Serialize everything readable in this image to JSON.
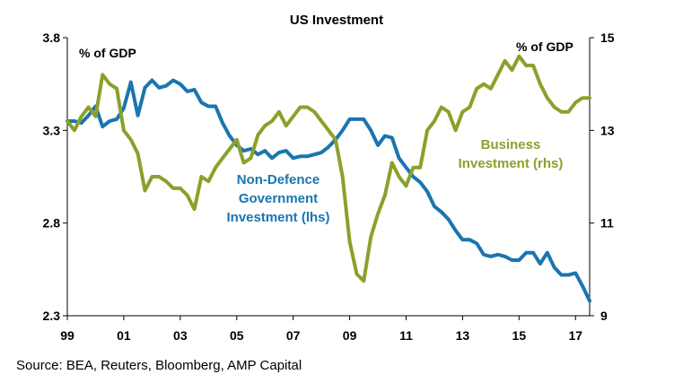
{
  "chart_data": {
    "type": "line",
    "title": "US Investment",
    "y_left_unit": "% of GDP",
    "y_right_unit": "% of GDP",
    "y_left_range": [
      2.3,
      3.8
    ],
    "y_right_range": [
      9,
      15
    ],
    "y_left_ticks": [
      "3.8",
      "3.3",
      "2.8",
      "2.3"
    ],
    "y_right_ticks": [
      "15",
      "13",
      "11",
      "9"
    ],
    "x_range": [
      1999,
      2017.5
    ],
    "x_ticks": [
      {
        "value": 1999,
        "label": "99"
      },
      {
        "value": 2001,
        "label": "01"
      },
      {
        "value": 2003,
        "label": "03"
      },
      {
        "value": 2005,
        "label": "05"
      },
      {
        "value": 2007,
        "label": "07"
      },
      {
        "value": 2009,
        "label": "09"
      },
      {
        "value": 2011,
        "label": "11"
      },
      {
        "value": 2013,
        "label": "13"
      },
      {
        "value": 2015,
        "label": "15"
      },
      {
        "value": 2017,
        "label": "17"
      }
    ],
    "grid": false,
    "series": [
      {
        "name": "Non-Defence Government Investment (lhs)",
        "label_lines": [
          "Non-Defence",
          "Government",
          "Investment (lhs)"
        ],
        "axis": "left",
        "color": "#1a75b0",
        "points": [
          [
            1999.0,
            3.35
          ],
          [
            1999.25,
            3.35
          ],
          [
            1999.5,
            3.34
          ],
          [
            1999.75,
            3.38
          ],
          [
            2000.0,
            3.43
          ],
          [
            2000.25,
            3.32
          ],
          [
            2000.5,
            3.35
          ],
          [
            2000.75,
            3.36
          ],
          [
            2001.0,
            3.42
          ],
          [
            2001.25,
            3.56
          ],
          [
            2001.5,
            3.38
          ],
          [
            2001.75,
            3.53
          ],
          [
            2002.0,
            3.57
          ],
          [
            2002.25,
            3.53
          ],
          [
            2002.5,
            3.54
          ],
          [
            2002.75,
            3.57
          ],
          [
            2003.0,
            3.55
          ],
          [
            2003.25,
            3.51
          ],
          [
            2003.5,
            3.52
          ],
          [
            2003.75,
            3.45
          ],
          [
            2004.0,
            3.43
          ],
          [
            2004.25,
            3.43
          ],
          [
            2004.5,
            3.34
          ],
          [
            2004.75,
            3.27
          ],
          [
            2005.0,
            3.22
          ],
          [
            2005.25,
            3.19
          ],
          [
            2005.5,
            3.2
          ],
          [
            2005.75,
            3.17
          ],
          [
            2006.0,
            3.19
          ],
          [
            2006.25,
            3.15
          ],
          [
            2006.5,
            3.18
          ],
          [
            2006.75,
            3.19
          ],
          [
            2007.0,
            3.15
          ],
          [
            2007.25,
            3.16
          ],
          [
            2007.5,
            3.16
          ],
          [
            2007.75,
            3.17
          ],
          [
            2008.0,
            3.18
          ],
          [
            2008.25,
            3.21
          ],
          [
            2008.5,
            3.25
          ],
          [
            2008.75,
            3.3
          ],
          [
            2009.0,
            3.36
          ],
          [
            2009.25,
            3.36
          ],
          [
            2009.5,
            3.36
          ],
          [
            2009.75,
            3.3
          ],
          [
            2010.0,
            3.22
          ],
          [
            2010.25,
            3.27
          ],
          [
            2010.5,
            3.26
          ],
          [
            2010.75,
            3.15
          ],
          [
            2011.0,
            3.1
          ],
          [
            2011.25,
            3.05
          ],
          [
            2011.5,
            3.02
          ],
          [
            2011.75,
            2.97
          ],
          [
            2012.0,
            2.89
          ],
          [
            2012.25,
            2.86
          ],
          [
            2012.5,
            2.82
          ],
          [
            2012.75,
            2.76
          ],
          [
            2013.0,
            2.71
          ],
          [
            2013.25,
            2.71
          ],
          [
            2013.5,
            2.69
          ],
          [
            2013.75,
            2.63
          ],
          [
            2014.0,
            2.62
          ],
          [
            2014.25,
            2.63
          ],
          [
            2014.5,
            2.62
          ],
          [
            2014.75,
            2.6
          ],
          [
            2015.0,
            2.6
          ],
          [
            2015.25,
            2.64
          ],
          [
            2015.5,
            2.64
          ],
          [
            2015.75,
            2.58
          ],
          [
            2016.0,
            2.64
          ],
          [
            2016.25,
            2.56
          ],
          [
            2016.5,
            2.52
          ],
          [
            2016.75,
            2.52
          ],
          [
            2017.0,
            2.53
          ],
          [
            2017.25,
            2.46
          ],
          [
            2017.5,
            2.38
          ]
        ]
      },
      {
        "name": "Business Investment (rhs)",
        "label_lines": [
          "Business",
          "Investment (rhs)"
        ],
        "axis": "right",
        "color": "#8aa12b",
        "points": [
          [
            1999.0,
            13.2
          ],
          [
            1999.25,
            13.0
          ],
          [
            1999.5,
            13.3
          ],
          [
            1999.75,
            13.5
          ],
          [
            2000.0,
            13.3
          ],
          [
            2000.25,
            14.2
          ],
          [
            2000.5,
            14.0
          ],
          [
            2000.75,
            13.9
          ],
          [
            2001.0,
            13.0
          ],
          [
            2001.25,
            12.8
          ],
          [
            2001.5,
            12.5
          ],
          [
            2001.75,
            11.7
          ],
          [
            2002.0,
            12.0
          ],
          [
            2002.25,
            12.0
          ],
          [
            2002.5,
            11.9
          ],
          [
            2002.75,
            11.75
          ],
          [
            2003.0,
            11.75
          ],
          [
            2003.25,
            11.6
          ],
          [
            2003.5,
            11.3
          ],
          [
            2003.75,
            12.0
          ],
          [
            2004.0,
            11.9
          ],
          [
            2004.25,
            12.2
          ],
          [
            2004.5,
            12.4
          ],
          [
            2004.75,
            12.6
          ],
          [
            2005.0,
            12.8
          ],
          [
            2005.25,
            12.3
          ],
          [
            2005.5,
            12.4
          ],
          [
            2005.75,
            12.9
          ],
          [
            2006.0,
            13.1
          ],
          [
            2006.25,
            13.2
          ],
          [
            2006.5,
            13.4
          ],
          [
            2006.75,
            13.1
          ],
          [
            2007.0,
            13.3
          ],
          [
            2007.25,
            13.5
          ],
          [
            2007.5,
            13.5
          ],
          [
            2007.75,
            13.4
          ],
          [
            2008.0,
            13.2
          ],
          [
            2008.25,
            13.0
          ],
          [
            2008.5,
            12.8
          ],
          [
            2008.75,
            12.0
          ],
          [
            2009.0,
            10.6
          ],
          [
            2009.25,
            9.9
          ],
          [
            2009.5,
            9.75
          ],
          [
            2009.75,
            10.7
          ],
          [
            2010.0,
            11.2
          ],
          [
            2010.25,
            11.6
          ],
          [
            2010.5,
            12.3
          ],
          [
            2010.75,
            12.0
          ],
          [
            2011.0,
            11.8
          ],
          [
            2011.25,
            12.2
          ],
          [
            2011.5,
            12.2
          ],
          [
            2011.75,
            13.0
          ],
          [
            2012.0,
            13.2
          ],
          [
            2012.25,
            13.5
          ],
          [
            2012.5,
            13.4
          ],
          [
            2012.75,
            13.0
          ],
          [
            2013.0,
            13.4
          ],
          [
            2013.25,
            13.5
          ],
          [
            2013.5,
            13.9
          ],
          [
            2013.75,
            14.0
          ],
          [
            2014.0,
            13.9
          ],
          [
            2014.25,
            14.2
          ],
          [
            2014.5,
            14.5
          ],
          [
            2014.75,
            14.3
          ],
          [
            2015.0,
            14.6
          ],
          [
            2015.25,
            14.4
          ],
          [
            2015.5,
            14.4
          ],
          [
            2015.75,
            14.0
          ],
          [
            2016.0,
            13.7
          ],
          [
            2016.25,
            13.5
          ],
          [
            2016.5,
            13.4
          ],
          [
            2016.75,
            13.4
          ],
          [
            2017.0,
            13.6
          ],
          [
            2017.25,
            13.7
          ],
          [
            2017.5,
            13.7
          ]
        ]
      }
    ]
  },
  "source": "Source: BEA, Reuters, Bloomberg, AMP Capital"
}
